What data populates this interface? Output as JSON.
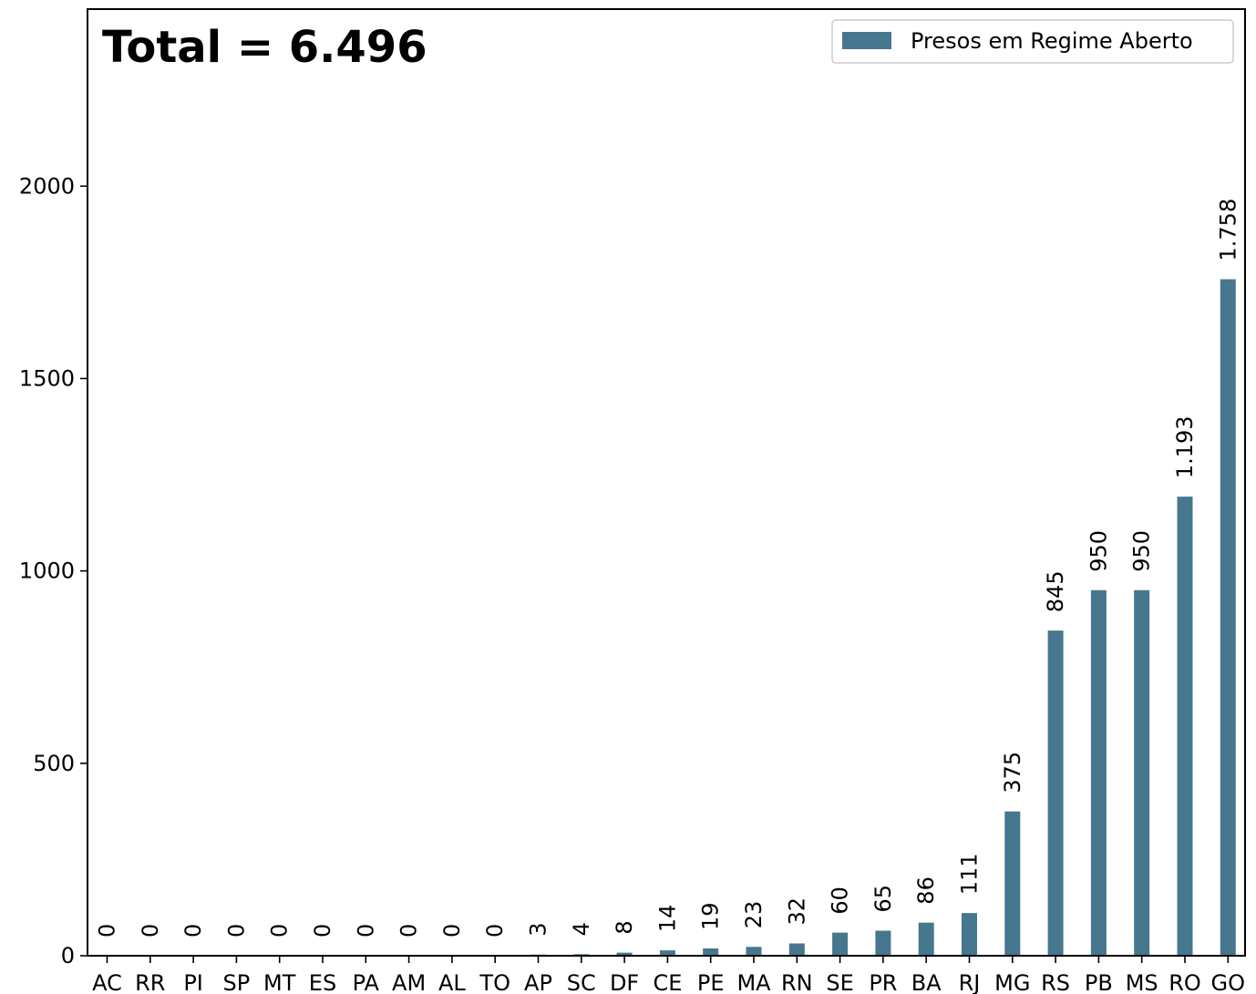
{
  "chart_data": {
    "type": "bar",
    "annotation": "Total = 6.496",
    "categories": [
      "AC",
      "RR",
      "PI",
      "SP",
      "MT",
      "ES",
      "PA",
      "AM",
      "AL",
      "TO",
      "AP",
      "SC",
      "DF",
      "CE",
      "PE",
      "MA",
      "RN",
      "SE",
      "PR",
      "BA",
      "RJ",
      "MG",
      "RS",
      "PB",
      "MS",
      "RO",
      "GO"
    ],
    "series": [
      {
        "name": "Presos em Regime Aberto",
        "color": "#46778f",
        "values": [
          0,
          0,
          0,
          0,
          0,
          0,
          0,
          0,
          0,
          0,
          3,
          4,
          8,
          14,
          19,
          23,
          32,
          60,
          65,
          86,
          111,
          375,
          845,
          950,
          950,
          1193,
          1758
        ],
        "labels": [
          "0",
          "0",
          "0",
          "0",
          "0",
          "0",
          "0",
          "0",
          "0",
          "0",
          "3",
          "4",
          "8",
          "14",
          "19",
          "23",
          "32",
          "60",
          "65",
          "86",
          "111",
          "375",
          "845",
          "950",
          "950",
          "1.193",
          "1.758"
        ]
      }
    ],
    "yticks": [
      0,
      500,
      1000,
      1500,
      2000
    ],
    "ylim": [
      0,
      2460
    ],
    "legend_position": "top-right",
    "grid": false
  }
}
